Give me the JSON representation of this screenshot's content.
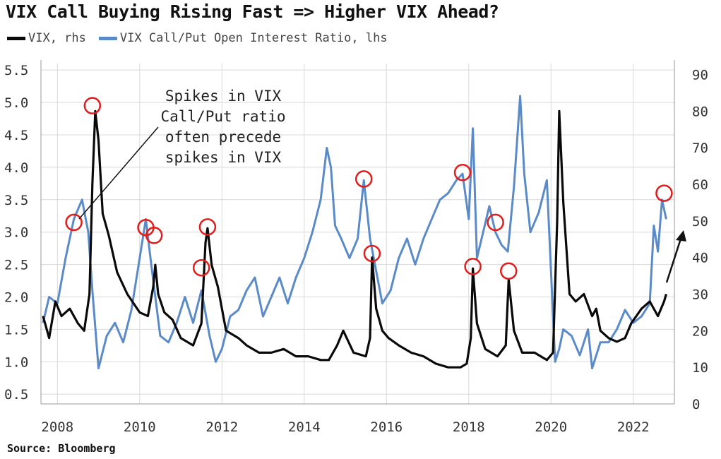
{
  "title": "VIX Call Buying Rising Fast => Higher VIX Ahead?",
  "source": "Source: Bloomberg",
  "colors": {
    "vix": "#0a0a0a",
    "ratio": "#5b8ac8",
    "circle": "#e31b1b",
    "grid": "#d9d9d9",
    "arrow": "#111111"
  },
  "chart_data": {
    "type": "line",
    "title": "VIX Call Buying Rising Fast => Higher VIX Ahead?",
    "xlabel": "",
    "ylabel_left": "",
    "ylabel_right": "",
    "grid": true,
    "legend_position": "top-left",
    "x_ticks": [
      "2008",
      "2010",
      "2012",
      "2014",
      "2016",
      "2018",
      "2020",
      "2022"
    ],
    "xlim": [
      2007.6,
      2023.0
    ],
    "y_left": {
      "lim": [
        0.35,
        5.6
      ],
      "ticks": [
        "0.5",
        "1.0",
        "1.5",
        "2.0",
        "2.5",
        "3.0",
        "3.5",
        "4.0",
        "4.5",
        "5.0",
        "5.5"
      ]
    },
    "y_right": {
      "lim": [
        0,
        93
      ],
      "ticks": [
        "0",
        "10",
        "20",
        "30",
        "40",
        "50",
        "60",
        "70",
        "80",
        "90"
      ]
    },
    "series": [
      {
        "name": "VIX, rhs",
        "axis": "right",
        "x": [
          2007.65,
          2007.8,
          2007.95,
          2008.1,
          2008.3,
          2008.5,
          2008.65,
          2008.78,
          2008.85,
          2008.92,
          2009.0,
          2009.1,
          2009.25,
          2009.45,
          2009.7,
          2010.0,
          2010.2,
          2010.33,
          2010.38,
          2010.45,
          2010.6,
          2010.8,
          2011.0,
          2011.3,
          2011.5,
          2011.6,
          2011.65,
          2011.75,
          2011.9,
          2012.1,
          2012.4,
          2012.6,
          2012.9,
          2013.2,
          2013.5,
          2013.8,
          2014.1,
          2014.4,
          2014.6,
          2014.8,
          2014.95,
          2015.2,
          2015.5,
          2015.6,
          2015.65,
          2015.75,
          2015.9,
          2016.05,
          2016.3,
          2016.6,
          2016.9,
          2017.2,
          2017.5,
          2017.8,
          2017.95,
          2018.05,
          2018.1,
          2018.2,
          2018.4,
          2018.7,
          2018.9,
          2018.97,
          2019.1,
          2019.3,
          2019.6,
          2019.9,
          2020.05,
          2020.15,
          2020.2,
          2020.3,
          2020.45,
          2020.6,
          2020.8,
          2021.0,
          2021.1,
          2021.2,
          2021.4,
          2021.6,
          2021.8,
          2021.95,
          2022.2,
          2022.4,
          2022.6,
          2022.75,
          2022.8
        ],
        "values": [
          24,
          18,
          28,
          24,
          26,
          22,
          20,
          30,
          60,
          80,
          72,
          52,
          46,
          36,
          30,
          25,
          24,
          32,
          38,
          30,
          25,
          23,
          18,
          16,
          22,
          44,
          48,
          38,
          32,
          20,
          18,
          16,
          14,
          14,
          15,
          13,
          13,
          12,
          12,
          16,
          20,
          14,
          13,
          18,
          40,
          26,
          20,
          18,
          16,
          14,
          13,
          11,
          10,
          10,
          11,
          18,
          37,
          22,
          15,
          13,
          16,
          34,
          20,
          14,
          14,
          12,
          14,
          50,
          80,
          55,
          30,
          28,
          30,
          24,
          26,
          20,
          18,
          17,
          18,
          22,
          26,
          28,
          24,
          28,
          30
        ]
      },
      {
        "name": "VIX Call/Put Open Interest Ratio, lhs",
        "axis": "left",
        "x": [
          2007.65,
          2007.8,
          2008.0,
          2008.2,
          2008.4,
          2008.6,
          2008.75,
          2008.85,
          2009.0,
          2009.2,
          2009.4,
          2009.6,
          2009.8,
          2010.0,
          2010.15,
          2010.3,
          2010.5,
          2010.7,
          2010.9,
          2011.1,
          2011.3,
          2011.5,
          2011.7,
          2011.85,
          2012.0,
          2012.2,
          2012.4,
          2012.6,
          2012.8,
          2013.0,
          2013.2,
          2013.4,
          2013.6,
          2013.8,
          2014.0,
          2014.2,
          2014.4,
          2014.55,
          2014.65,
          2014.75,
          2014.9,
          2015.1,
          2015.3,
          2015.45,
          2015.6,
          2015.75,
          2015.9,
          2016.1,
          2016.3,
          2016.5,
          2016.7,
          2016.9,
          2017.1,
          2017.3,
          2017.5,
          2017.7,
          2017.85,
          2018.0,
          2018.1,
          2018.2,
          2018.35,
          2018.5,
          2018.65,
          2018.8,
          2018.95,
          2019.1,
          2019.25,
          2019.35,
          2019.5,
          2019.7,
          2019.9,
          2020.1,
          2020.2,
          2020.3,
          2020.5,
          2020.7,
          2020.9,
          2021.0,
          2021.2,
          2021.4,
          2021.6,
          2021.8,
          2022.0,
          2022.2,
          2022.4,
          2022.5,
          2022.6,
          2022.7,
          2022.8
        ],
        "values": [
          1.6,
          2.0,
          1.9,
          2.6,
          3.2,
          3.5,
          3.0,
          2.1,
          0.9,
          1.4,
          1.6,
          1.3,
          1.8,
          2.6,
          3.2,
          2.4,
          1.4,
          1.3,
          1.6,
          2.0,
          1.6,
          2.1,
          1.4,
          1.0,
          1.2,
          1.7,
          1.8,
          2.1,
          2.3,
          1.7,
          2.0,
          2.3,
          1.9,
          2.3,
          2.6,
          3.0,
          3.5,
          4.3,
          4.0,
          3.1,
          2.9,
          2.6,
          2.9,
          3.8,
          2.9,
          2.4,
          1.9,
          2.1,
          2.6,
          2.9,
          2.5,
          2.9,
          3.2,
          3.5,
          3.6,
          3.8,
          3.9,
          3.2,
          4.6,
          2.6,
          3.0,
          3.4,
          3.0,
          2.8,
          2.7,
          3.7,
          5.1,
          3.9,
          3.0,
          3.3,
          3.8,
          1.0,
          1.2,
          1.5,
          1.4,
          1.1,
          1.5,
          0.9,
          1.3,
          1.3,
          1.5,
          1.8,
          1.6,
          1.7,
          1.9,
          3.1,
          2.7,
          3.5,
          3.2
        ]
      }
    ],
    "circles": [
      {
        "x": 2008.4,
        "axis": "left",
        "y": 3.15
      },
      {
        "x": 2008.85,
        "axis": "left",
        "y": 4.95
      },
      {
        "x": 2010.15,
        "axis": "left",
        "y": 3.07
      },
      {
        "x": 2010.35,
        "axis": "left",
        "y": 2.95
      },
      {
        "x": 2011.5,
        "axis": "left",
        "y": 2.45
      },
      {
        "x": 2011.65,
        "axis": "left",
        "y": 3.08
      },
      {
        "x": 2015.45,
        "axis": "left",
        "y": 3.82
      },
      {
        "x": 2015.65,
        "axis": "left",
        "y": 2.67
      },
      {
        "x": 2017.85,
        "axis": "left",
        "y": 3.92
      },
      {
        "x": 2018.1,
        "axis": "left",
        "y": 2.47
      },
      {
        "x": 2018.65,
        "axis": "left",
        "y": 3.15
      },
      {
        "x": 2018.97,
        "axis": "left",
        "y": 2.4
      },
      {
        "x": 2022.75,
        "axis": "left",
        "y": 3.6
      }
    ],
    "annotation": {
      "lines": [
        "Spikes in VIX",
        "Call/Put ratio",
        "often precede",
        "spikes in VIX"
      ]
    }
  }
}
